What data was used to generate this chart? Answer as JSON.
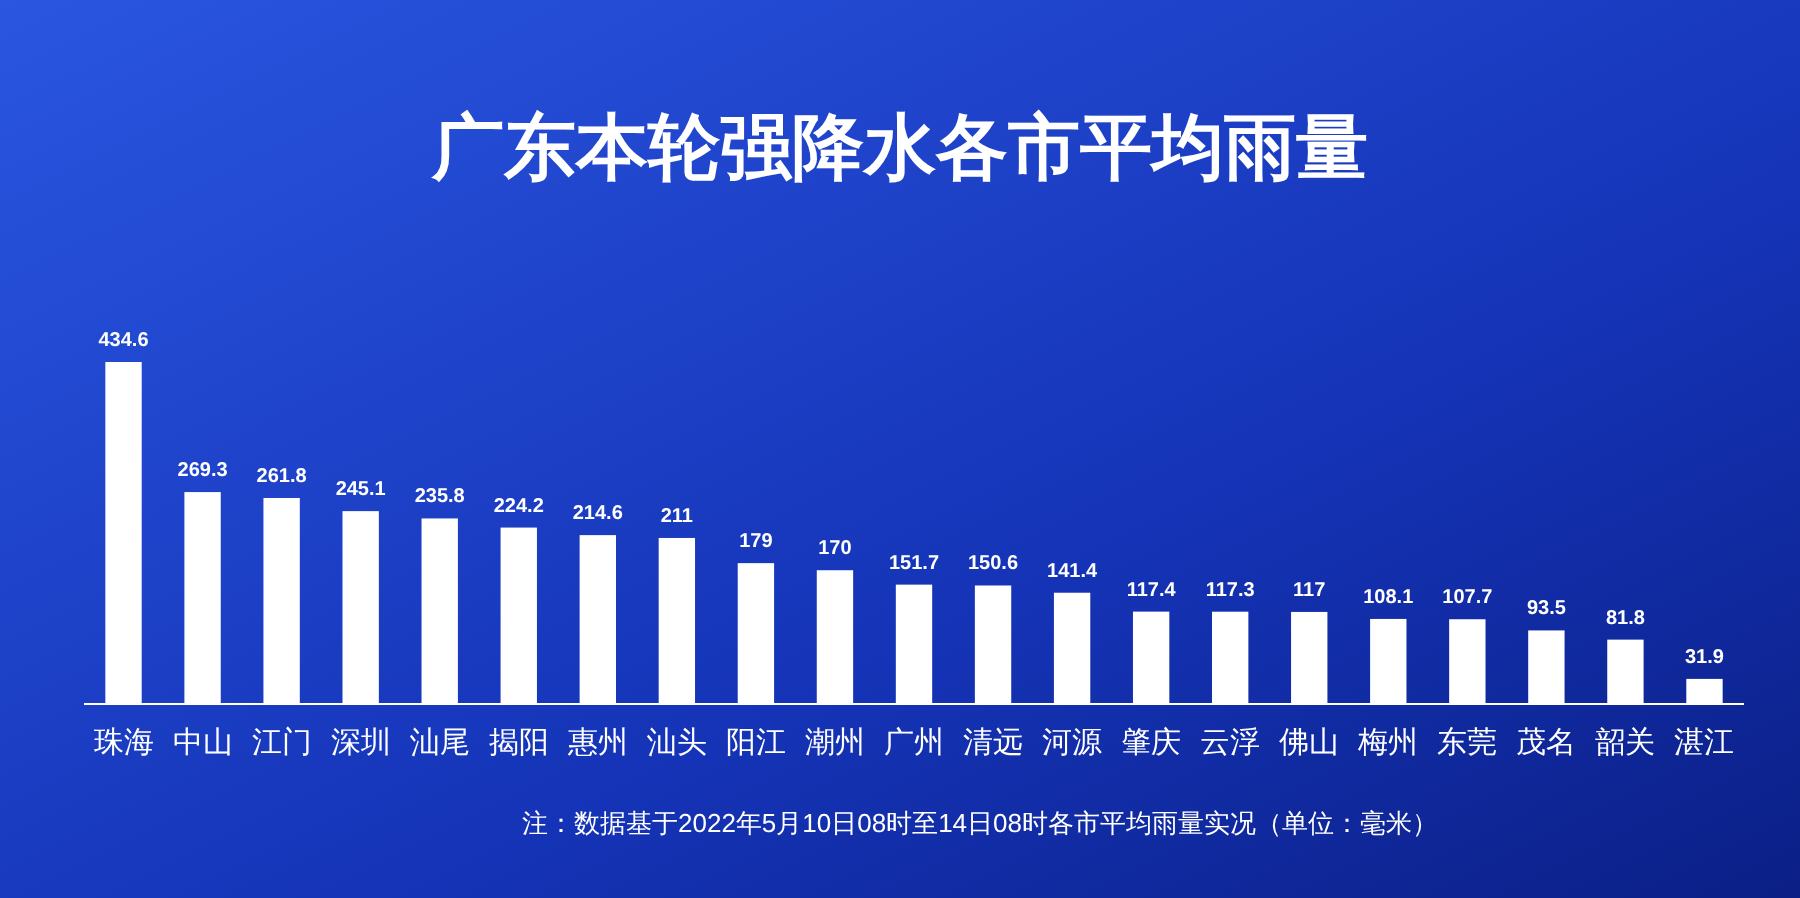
{
  "chart_data": {
    "type": "bar",
    "title": "广东本轮强降水各市平均雨量",
    "categories": [
      "珠海",
      "中山",
      "江门",
      "深圳",
      "汕尾",
      "揭阳",
      "惠州",
      "汕头",
      "阳江",
      "潮州",
      "广州",
      "清远",
      "河源",
      "肇庆",
      "云浮",
      "佛山",
      "梅州",
      "东莞",
      "茂名",
      "韶关",
      "湛江"
    ],
    "values": [
      434.6,
      269.3,
      261.8,
      245.1,
      235.8,
      224.2,
      214.6,
      211,
      179,
      170,
      151.7,
      150.6,
      141.4,
      117.4,
      117.3,
      117,
      108.1,
      107.7,
      93.5,
      81.8,
      31.9
    ],
    "color": "#ffffff",
    "data_labels": true,
    "annotations": [
      "注：数据基于2022年5月10日08时至14日08时各市平均雨量实况（单位：毫米）"
    ]
  }
}
